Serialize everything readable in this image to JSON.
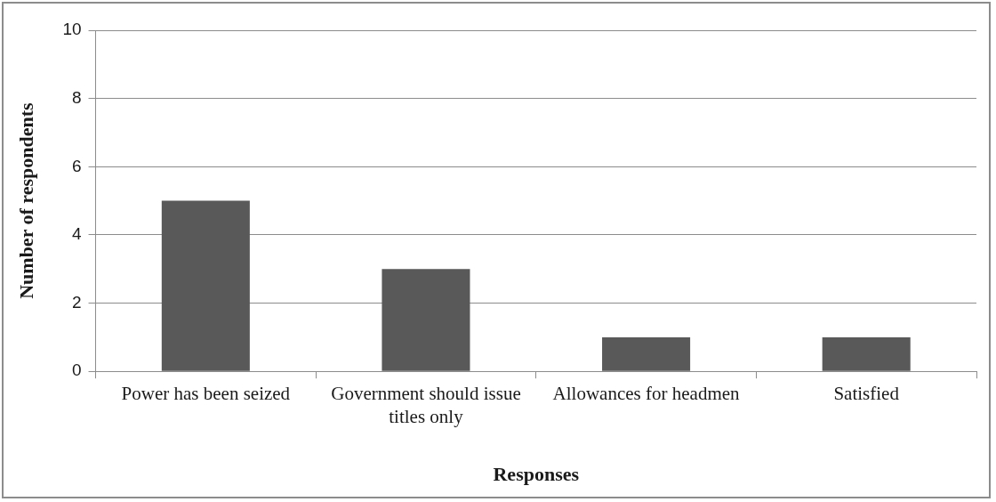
{
  "chart_data": {
    "type": "bar",
    "xlabel": "Responses",
    "ylabel": "Number of respondents",
    "categories": [
      "Power has been seized",
      "Government should issue titles only",
      "Allowances for headmen",
      "Satisfied"
    ],
    "values": [
      5,
      3,
      1,
      1
    ],
    "color": "#595959",
    "ylim": [
      0,
      10
    ],
    "yticks": [
      0,
      2,
      4,
      6,
      8,
      10
    ],
    "grid": "y"
  }
}
